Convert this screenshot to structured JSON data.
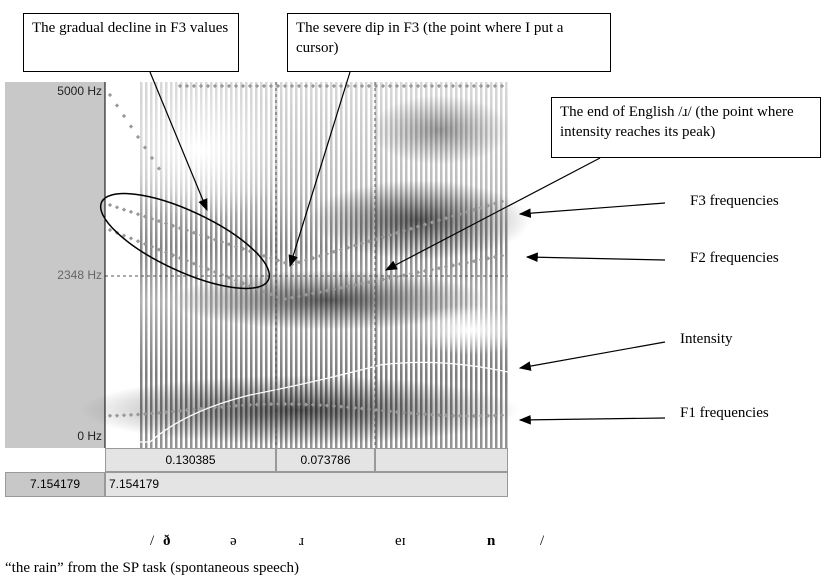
{
  "annotations": [
    "The gradual decline in F3 values",
    "The severe dip in F3 (the point where I put a cursor)",
    "The end of English /ɹ/ (the point where intensity reaches its peak)"
  ],
  "labels": [
    "F3 frequencies",
    "F2 frequencies",
    "Intensity",
    "F1 frequencies"
  ],
  "frequency_axis": [
    "5000 Hz",
    "2348 Hz",
    "0 Hz"
  ],
  "cursor_intervals": [
    "0.130385",
    "0.073786"
  ],
  "time": [
    "7.154179",
    "7.154179"
  ],
  "transcription": [
    "/",
    "ð",
    "ə",
    "ɹ",
    "eɪ",
    "n",
    "/"
  ],
  "caption": "“the rain” from the SP task (spontaneous speech)"
}
